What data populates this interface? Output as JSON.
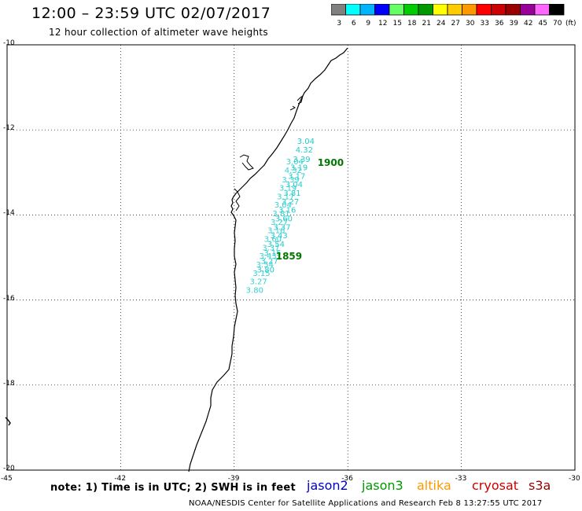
{
  "header": {
    "title": "12:00 – 23:59 UTC 02/07/2017",
    "subtitle": "12 hour collection of altimeter wave heights"
  },
  "colorbar": {
    "labels": [
      "3",
      "6",
      "9",
      "12",
      "15",
      "18",
      "21",
      "24",
      "27",
      "30",
      "33",
      "36",
      "39",
      "42",
      "45",
      "70"
    ],
    "unit": "(ft)",
    "colors": [
      "#808080",
      "#00ffff",
      "#00b4ff",
      "#0000ff",
      "#66ff66",
      "#00cc00",
      "#009900",
      "#ffff00",
      "#ffcc00",
      "#ff9900",
      "#ff0000",
      "#cc0000",
      "#990000",
      "#990099",
      "#ff66ff",
      "#000000"
    ]
  },
  "axes": {
    "lat_labels": [
      "-10",
      "-12",
      "-14",
      "-16",
      "-18",
      "-20"
    ],
    "lon_labels": [
      "-45",
      "-42",
      "-39",
      "-36",
      "-33",
      "-30"
    ],
    "lat_range": [
      -20,
      -10
    ],
    "lon_range": [
      -45,
      -30
    ]
  },
  "track": {
    "color": "#22cccc",
    "points": [
      {
        "lat": -12.33,
        "lon": -37.34,
        "value": "3.04"
      },
      {
        "lat": -12.53,
        "lon": -37.38,
        "value": "4.32"
      },
      {
        "lat": -12.75,
        "lon": -37.45,
        "value": "3.39"
      },
      {
        "lat": -12.95,
        "lon": -37.52,
        "value": "3.19"
      },
      {
        "lat": -13.15,
        "lon": -37.58,
        "value": "3.17"
      },
      {
        "lat": -13.35,
        "lon": -37.65,
        "value": "3.04"
      },
      {
        "lat": -13.55,
        "lon": -37.7,
        "value": "3.81"
      },
      {
        "lat": -13.75,
        "lon": -37.75,
        "value": "3.27"
      },
      {
        "lat": -13.95,
        "lon": -37.83,
        "value": "3.16"
      },
      {
        "lat": -14.15,
        "lon": -37.92,
        "value": "3.60"
      },
      {
        "lat": -14.35,
        "lon": -37.97,
        "value": "3.37"
      },
      {
        "lat": -14.55,
        "lon": -38.05,
        "value": "3.43"
      },
      {
        "lat": -14.75,
        "lon": -38.13,
        "value": "3.54"
      },
      {
        "lat": -14.95,
        "lon": -38.22,
        "value": "3.15"
      },
      {
        "lat": -15.15,
        "lon": -38.3,
        "value": "3.27"
      },
      {
        "lat": -15.35,
        "lon": -38.4,
        "value": "3.80"
      }
    ]
  },
  "time_labels": [
    {
      "text": "1900",
      "color": "#007700",
      "lat": -12.85,
      "lon": -36.8
    },
    {
      "text": "1859",
      "color": "#007700",
      "lat": -15.05,
      "lon": -37.9
    }
  ],
  "footer": {
    "note": "note:  1) Time is in UTC;  2) SWH is in feet",
    "satellites": [
      {
        "name": "jason2",
        "color": "#0000cc"
      },
      {
        "name": "jason3",
        "color": "#009900"
      },
      {
        "name": "altika",
        "color": "#ff9900"
      },
      {
        "name": "cryosat",
        "color": "#cc0000"
      },
      {
        "name": "s3a",
        "color": "#990000"
      }
    ],
    "credit": "NOAA/NESDIS Center for Satellite Applications and Research    Feb  8 13:27:55 UTC 2017"
  }
}
